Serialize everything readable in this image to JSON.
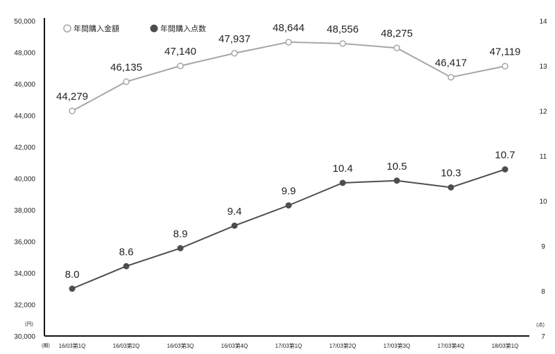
{
  "chart_data": {
    "type": "line",
    "categories": [
      "16/03第1Q",
      "16/03第2Q",
      "16/03第3Q",
      "16/03第4Q",
      "17/03第1Q",
      "17/03第2Q",
      "17/03第3Q",
      "17/03第4Q",
      "18/03第1Q"
    ],
    "x_unit": "(期)",
    "left_axis": {
      "unit": "(円)",
      "ylim": [
        30000,
        50000
      ],
      "ticks": [
        30000,
        32000,
        34000,
        36000,
        38000,
        40000,
        42000,
        44000,
        46000,
        48000,
        50000
      ],
      "tick_labels": [
        "30,000",
        "32,000",
        "34,000",
        "36,000",
        "38,000",
        "40,000",
        "42,000",
        "44,000",
        "46,000",
        "48,000",
        "50,000"
      ]
    },
    "right_axis": {
      "unit": "(点)",
      "ylim": [
        7,
        14
      ],
      "ticks": [
        7,
        8,
        9,
        10,
        11,
        12,
        13,
        14
      ],
      "tick_labels": [
        "7",
        "8",
        "9",
        "10",
        "11",
        "12",
        "13",
        "14"
      ]
    },
    "series": [
      {
        "name": "年間購入金額",
        "axis": "left",
        "marker": "open-circle",
        "color": "#a6a6a6",
        "values": [
          44279,
          46135,
          47140,
          47937,
          48644,
          48556,
          48275,
          46417,
          47119
        ],
        "labels": [
          "44,279",
          "46,135",
          "47,140",
          "47,937",
          "48,644",
          "48,556",
          "48,275",
          "46,417",
          "47,119"
        ]
      },
      {
        "name": "年間購入点数",
        "axis": "right",
        "marker": "filled-circle",
        "color": "#4d4d4d",
        "values": [
          8.05,
          8.55,
          8.95,
          9.45,
          9.9,
          10.4,
          10.45,
          10.3,
          10.7
        ],
        "labels": [
          "8.0",
          "8.6",
          "8.9",
          "9.4",
          "9.9",
          "10.4",
          "10.5",
          "10.3",
          "10.7"
        ]
      }
    ],
    "legend": "top-left",
    "grid": false
  }
}
